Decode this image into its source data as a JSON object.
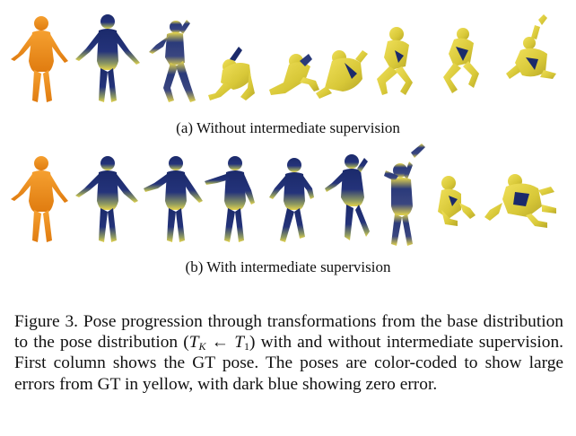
{
  "figure": {
    "row_a": {
      "subcaption": "(a) Without intermediate supervision",
      "poses": [
        "gt-orange",
        "blue-standing",
        "blue-yellow-walking",
        "yellow-crouch",
        "yellow-reclined",
        "yellow-kneeling",
        "yellow-twisted",
        "yellow-bent",
        "yellow-curled"
      ]
    },
    "row_b": {
      "subcaption": "(b) With intermediate supervision",
      "poses": [
        "gt-orange",
        "blue-standing",
        "blue-standing-2",
        "blue-arm-out",
        "blue-walking",
        "blue-stepping",
        "blue-yellow-arm-up",
        "yellow-crouch",
        "yellow-crawling"
      ]
    },
    "caption": {
      "before_math": "Figure 3.  Pose progression through transformations from the base distribution to the pose distribution (",
      "math_T": "T",
      "math_sub_K": "K",
      "math_arrow": " ← ",
      "math_T2": "T",
      "math_sub_1": "1",
      "after_math": ") with and without intermediate supervision.  First column shows the GT pose.  The poses are color-coded to show large errors from GT in yellow, with dark blue showing zero error."
    },
    "colors": {
      "gt": "#f0901a",
      "zero_error": "#1a2a6e",
      "large_error": "#e8d84a"
    }
  }
}
